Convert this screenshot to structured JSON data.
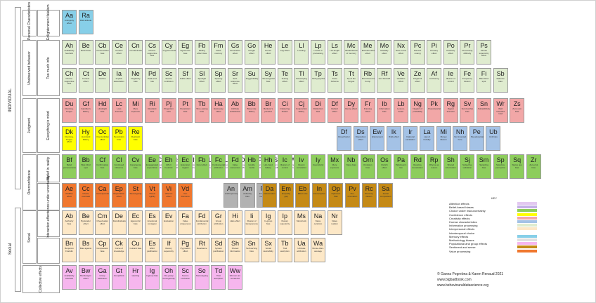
{
  "labels": {
    "individual": "INDIVIDUAL",
    "social": "Social",
    "personal_characteristics": "Personal Characteristics",
    "enlightenment": "Enlightenment fatalism",
    "unobserved": "Unobserved behavior",
    "too_much_info": "Too much info",
    "judgment": "Judgment",
    "everything_in_mind": "Everything in mind",
    "belief_in_reality": "Belief in reality",
    "overconfidence": "Overconfidence",
    "inference_uncertainty": "Inference under uncertainty",
    "interaction_effects": "Interaction effects",
    "collective_effects": "Collective effects"
  },
  "rows": [
    {
      "color": "#87cfe8",
      "cells": [
        [
          "Aa",
          "Ambiguity effect"
        ],
        [
          "Ra",
          "Risk attitude"
        ]
      ]
    },
    {
      "color": "#dfeccf",
      "cells": [
        [
          "Ah",
          "Availability heuristic"
        ],
        [
          "Be",
          "Belief bias"
        ],
        [
          "Cb",
          "Conservatism bias"
        ],
        [
          "Ce",
          "Context effect"
        ],
        [
          "Cn",
          "Contamination"
        ],
        [
          "Cs",
          "Choice-supportive bias"
        ],
        [
          "Cy",
          "Cryptomnesia"
        ],
        [
          "Eg",
          "Egocentric bias"
        ],
        [
          "Fb",
          "Fading affect bias"
        ],
        [
          "Fm",
          "False memory"
        ],
        [
          "Gs",
          "Generation effect"
        ],
        [
          "Go",
          "Google effect"
        ],
        [
          "He",
          "Humor effect"
        ],
        [
          "Le",
          "Lag effect"
        ],
        [
          "Ll",
          "Leveling"
        ],
        [
          "Lp",
          "Levels of processing"
        ],
        [
          "Ls",
          "List-length effect"
        ],
        [
          "Mc",
          "Misattribution of memory"
        ],
        [
          "Me",
          "Misinformation effect"
        ],
        [
          "Mo",
          "Modality effect"
        ],
        [
          "Nx",
          "Next-in-line effect"
        ],
        [
          "Pc",
          "Part-list cueing"
        ],
        [
          "Pi",
          "Primacy effect"
        ],
        [
          "Po",
          "Positivity effect"
        ],
        [
          "Pr",
          "Processing difficulty"
        ],
        [
          "Ps",
          "Picture superiority effect"
        ]
      ]
    },
    {
      "color": "#dfeccf",
      "cells": [
        [
          "Ch",
          "Choice-supportive bias"
        ],
        [
          "Ct",
          "Context effect"
        ],
        [
          "De",
          "Decline"
        ],
        [
          "Ia",
          "Implicit association"
        ],
        [
          "Ne",
          "Negativity bias"
        ],
        [
          "Pd",
          "Peak-end rule"
        ],
        [
          "Sc",
          "Source confusion"
        ],
        [
          "Sf",
          "Suffix effect"
        ],
        [
          "Sl",
          "Spotlight effect"
        ],
        [
          "Sp",
          "Spacing effect"
        ],
        [
          "Sr",
          "Self-reference effect"
        ],
        [
          "Su",
          "Suggestibility"
        ],
        [
          "Sy",
          "Stereotypical bias"
        ],
        [
          "Te",
          "Testing effect"
        ],
        [
          "Tl",
          "Telescoping effect"
        ],
        [
          "Tp",
          "Tachypsychia"
        ],
        [
          "Ts",
          "Trace Schema"
        ],
        [
          "Tt",
          "Tip of the tongue"
        ],
        [
          "Rb",
          "Reminiscence bump"
        ],
        [
          "Rf",
          "Von Restorff"
        ],
        [
          "Ve",
          "Verbatim effect"
        ],
        [
          "Ze",
          "Zeigarnik effect"
        ],
        [
          "Af",
          "Anchoring"
        ],
        [
          "Ie",
          "Illusion of control"
        ],
        [
          "Fe",
          "Frequency illusion"
        ],
        [
          "Fi",
          "Bias blind spot"
        ],
        [
          "Sb",
          "Salience bias"
        ]
      ]
    },
    {
      "color": "#f2a7a7",
      "cells": [
        [
          "Du",
          "Dunning-Kruger"
        ],
        [
          "Gf",
          "Gambler's fallacy"
        ],
        [
          "Hd",
          "Hindsight bias"
        ],
        [
          "Lc",
          "Loss aversion"
        ],
        [
          "Mi",
          "Mere exposure"
        ],
        [
          "Ri",
          "Restraint bias"
        ],
        [
          "Pj",
          "Projection bias"
        ],
        [
          "Pt",
          "Pessimism bias"
        ],
        [
          "Tb",
          "Time-saving bias"
        ],
        [
          "Ha",
          "Hard-easy effect"
        ],
        [
          "Ab",
          "Attribute substitution"
        ],
        [
          "Bb",
          "Base rate fallacy"
        ],
        [
          "Br",
          "Berkson's paradox"
        ],
        [
          "Ci",
          "Clustering illusion"
        ],
        [
          "Cj",
          "Conjunction fallacy"
        ],
        [
          "Di",
          "Distinction bias"
        ],
        [
          "Df",
          "Default effect"
        ],
        [
          "Dy",
          "Decoy effect"
        ],
        [
          "Fr",
          "Framing effect"
        ],
        [
          "Ib",
          "Information bias"
        ],
        [
          "Lb",
          "Less-is-better"
        ],
        [
          "Ng",
          "Neglect of probability"
        ],
        [
          "Pk",
          "Pseudocertainty"
        ],
        [
          "Rg",
          "Regret aversion"
        ],
        [
          "Sv",
          "Survivorship bias"
        ],
        [
          "Sn",
          "Subadditivity"
        ],
        [
          "Wr",
          "Well travelled road"
        ],
        [
          "Zs",
          "Zero-sum bias"
        ]
      ]
    },
    {
      "color": "#ffff00",
      "cells": [
        [
          "Dk",
          "Dunning-Kruger effect"
        ],
        [
          "Hy",
          "Hot-hand fallacy"
        ],
        [
          "Oc",
          "Overconfidence effect"
        ],
        [
          "Pb",
          "Pessimism bias"
        ],
        [
          "Re",
          "Restraint bias"
        ]
      ]
    },
    {
      "color": "#ffffff",
      "cells": [
        [
          "Co",
          "Conjunction fallacy"
        ],
        [
          "Is",
          "Illusion of validity"
        ],
        [
          "It",
          "Illusion of truth"
        ],
        [
          "Li",
          "Law of the instrument"
        ],
        [
          "Lk",
          "Loss aversion"
        ],
        [
          "Ob",
          "Observer effect"
        ],
        [
          "Pf",
          "Planning fallacy"
        ],
        [
          "Sg",
          "Semmelweis reflex"
        ],
        [
          "Wf",
          "Women are wonderful"
        ]
      ]
    },
    {
      "color": "#a4c2e6",
      "cells": [
        [
          "Df",
          "Dread factor"
        ],
        [
          "Ds",
          "Disposition effect"
        ],
        [
          "Ew",
          "Endowment"
        ],
        [
          "Ik",
          "IKEA effect"
        ],
        [
          "Ir",
          "Irrational escalation"
        ],
        [
          "La",
          "Law of triviality"
        ],
        [
          "Mi",
          "Money illusion"
        ],
        [
          "Nh",
          "Not invented here"
        ],
        [
          "Pe",
          "Pseudocertainty"
        ],
        [
          "Ub",
          "Unit bias"
        ]
      ]
    },
    {
      "color": "#8dcd5c",
      "cells": [
        [
          "Bf",
          "Belief perseverance"
        ],
        [
          "Bb",
          "Bias blind spot"
        ],
        [
          "Cf",
          "Confirmation bias"
        ],
        [
          "Cl",
          "Continued influence"
        ],
        [
          "Cv",
          "Congruence bias"
        ],
        [
          "Ee",
          "Exaggerated expectation"
        ],
        [
          "Eh",
          "Effort heuristic"
        ],
        [
          "Ec",
          "Extension neglect"
        ],
        [
          "Fb",
          "Forer effect"
        ],
        [
          "Fc",
          "Fundamental attribution"
        ],
        [
          "Fd",
          "False consensus"
        ],
        [
          "Hb",
          "Hostile media"
        ],
        [
          "Hh",
          "Hot-hand fallacy"
        ],
        [
          "Ic",
          "Illusion of control"
        ],
        [
          "Iv",
          "Illusory correlation"
        ],
        [
          "Iy",
          "Insensitivity"
        ],
        [
          "Mx",
          "Mere exposure"
        ],
        [
          "Nb",
          "Naive bias"
        ],
        [
          "Om",
          "Omission bias"
        ],
        [
          "Os",
          "Ostrich effect"
        ],
        [
          "Pa",
          "Parkinson's law"
        ],
        [
          "Rd",
          "Reactive devaluation"
        ],
        [
          "Rp",
          "Rhyme as reason"
        ],
        [
          "Sh",
          "Shared information"
        ],
        [
          "Sj",
          "Subjective validation"
        ],
        [
          "Sm",
          "Sampling bias"
        ],
        [
          "Sp",
          "Selective perception"
        ],
        [
          "Sq",
          "Status quo bias"
        ],
        [
          "Zr",
          "Zero-risk bias"
        ]
      ]
    },
    {
      "color": "#f0772e",
      "cells": [
        [
          "Ae",
          "Additive effect"
        ],
        [
          "Cc",
          "Choice overload"
        ],
        [
          "Ca",
          "Correspondence"
        ],
        [
          "Ep",
          "Expectation effect"
        ],
        [
          "St",
          "Stereotyping"
        ],
        [
          "Vt",
          "Threat rigidity"
        ],
        [
          "Vi",
          "Valence effect"
        ],
        [
          "Vd",
          "Von Domarus"
        ]
      ]
    },
    {
      "color": "#b2b2b2",
      "cells": [
        [
          "An",
          "Anthropomorphism"
        ],
        [
          "Am",
          "Authority bias"
        ],
        [
          "Fn",
          "Functional fixedness"
        ]
      ]
    },
    {
      "color": "#c58a16",
      "cells": [
        [
          "Da",
          "Deformation"
        ],
        [
          "Em",
          "Empathy gap"
        ],
        [
          "Eb",
          "Effect size"
        ],
        [
          "In",
          "Interoceptive"
        ],
        [
          "Op",
          "Optimism bias"
        ],
        [
          "Pv",
          "Pro-innovation"
        ],
        [
          "Rc",
          "Recency illusion"
        ],
        [
          "Sa",
          "Social comparison"
        ]
      ]
    },
    {
      "color": "#fde8c7",
      "cells": [
        [
          "Ab",
          "Authority bias"
        ],
        [
          "Be",
          "Bystander effect"
        ],
        [
          "Cm",
          "Cheerleader effect"
        ],
        [
          "De",
          "Deindividuation"
        ],
        [
          "Ec",
          "Egocentric bias"
        ],
        [
          "Es",
          "Emotional contagion"
        ],
        [
          "Ev",
          "Evaluation"
        ],
        [
          "Fa",
          "False uniqueness"
        ],
        [
          "Fd",
          "Fundamental attribution"
        ],
        [
          "Gr",
          "Group attribution"
        ],
        [
          "Hi",
          "Halo effect"
        ],
        [
          "Ii",
          "Illusion of transparency"
        ],
        [
          "Ig",
          "In-group bias"
        ],
        [
          "Ip",
          "Illusory superiority"
        ],
        [
          "Ms",
          "Moral luck"
        ],
        [
          "Na",
          "Naive cynicism"
        ],
        [
          "Nr",
          "Naive realism"
        ]
      ]
    },
    {
      "color": "#fde8c7",
      "cells": [
        [
          "Bn",
          "Benjamin Franklin"
        ],
        [
          "Bs",
          "Bias against"
        ],
        [
          "Cp",
          "Compassion fade"
        ],
        [
          "Ck",
          "Curse of knowledge"
        ],
        [
          "Cu",
          "Cultural bias"
        ],
        [
          "Es",
          "Effort justification"
        ],
        [
          "If",
          "Illusory superiority"
        ],
        [
          "Pg",
          "Pygmalion effect"
        ],
        [
          "Rt",
          "Reactance"
        ],
        [
          "Sd",
          "System justification"
        ],
        [
          "Sh",
          "Shared information"
        ],
        [
          "Sn",
          "Self-serving bias"
        ],
        [
          "Sx",
          "Social desirability"
        ],
        [
          "Tb",
          "Trait ascription"
        ],
        [
          "Ua",
          "Ultimate attribution"
        ],
        [
          "Wa",
          "Worse-than-average"
        ]
      ]
    },
    {
      "color": "#f6b6ee",
      "cells": [
        [
          "Av",
          "Availability cascade"
        ],
        [
          "Bw",
          "Bandwagon effect"
        ],
        [
          "Ga",
          "Group attribution"
        ],
        [
          "Gt",
          "Groupthink"
        ],
        [
          "Hr",
          "Herding"
        ],
        [
          "Ig",
          "Ingroup bias"
        ],
        [
          "Oh",
          "Out-group homogeneity"
        ],
        [
          "Sc",
          "Source confusion"
        ],
        [
          "Se",
          "Stereotyping"
        ],
        [
          "Td",
          "Trait ascription"
        ],
        [
          "Ww",
          "Women are wonderful"
        ]
      ]
    }
  ],
  "key": {
    "title": "KEY",
    "items": [
      {
        "label": "Attention effects",
        "color": "#e3c8f0"
      },
      {
        "label": "Belief-based biases",
        "color": "#c4b0e6"
      },
      {
        "label": "Choice under risk/uncertainty",
        "color": "#8dcd5c"
      },
      {
        "label": "Confidence effects",
        "color": "#ffff00"
      },
      {
        "label": "Creativity effects",
        "color": "#f2a7a7"
      },
      {
        "label": "Human characteristics",
        "color": "#a4c2e6"
      },
      {
        "label": "Information processing",
        "color": "#dfeccf"
      },
      {
        "label": "Interpersonal effects",
        "color": "#fde8c7"
      },
      {
        "label": "Intertemporal choice",
        "color": "#ffffff"
      },
      {
        "label": "Memory effects",
        "color": "#87cfe8"
      },
      {
        "label": "Methodology biases",
        "color": "#e0e0e0"
      },
      {
        "label": "Populational and group effects",
        "color": "#f6b6ee"
      },
      {
        "label": "Sentiment and sense",
        "color": "#c58a16"
      },
      {
        "label": "Value processing",
        "color": "#f0772e"
      }
    ]
  },
  "credits": [
    "© Ganna Pogrebna & Karen Renaud 2021",
    "www.bigbadbook.com",
    "www.behaviouraldatascience.org"
  ]
}
